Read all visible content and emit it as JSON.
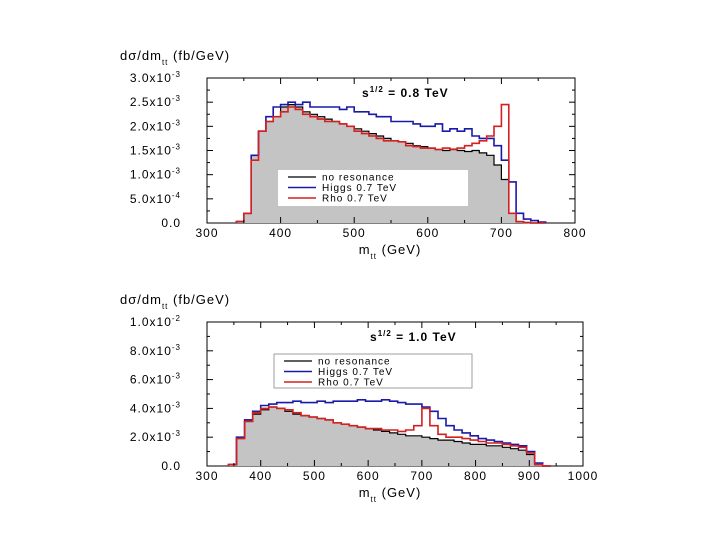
{
  "chart_data": [
    {
      "type": "line",
      "ylabel": "dσ/dm_tt (fb/GeV)",
      "xlabel": "m_tt (GeV)",
      "annotation": "s^{1/2} = 0.8 TeV",
      "xlim": [
        300,
        800
      ],
      "ylim": [
        0,
        0.003
      ],
      "x_ticks": [
        "300",
        "400",
        "500",
        "600",
        "700",
        "800"
      ],
      "y_ticks": [
        "0.0",
        "5.0x10^-4",
        "1.0x10^-3",
        "1.5x10^-3",
        "2.0x10^-3",
        "2.5x10^-3",
        "3.0x10^-3"
      ],
      "legend": [
        "no resonance",
        "Higgs 0.7 TeV",
        "Rho 0.7 TeV"
      ],
      "legend_position": "center",
      "x": [
        340,
        350,
        360,
        370,
        380,
        390,
        400,
        410,
        420,
        430,
        440,
        450,
        460,
        470,
        480,
        490,
        500,
        510,
        520,
        530,
        540,
        550,
        560,
        570,
        580,
        590,
        600,
        610,
        620,
        630,
        640,
        650,
        660,
        670,
        680,
        690,
        700,
        710,
        720,
        730,
        740,
        750
      ],
      "series": [
        {
          "name": "no resonance",
          "color": "#000000",
          "filled": true,
          "values": [
            3e-05,
            0.0002,
            0.0014,
            0.0019,
            0.0021,
            0.0022,
            0.0024,
            0.00245,
            0.0024,
            0.0023,
            0.00225,
            0.0022,
            0.00215,
            0.0021,
            0.00205,
            0.002,
            0.00195,
            0.0019,
            0.00185,
            0.0018,
            0.00175,
            0.0017,
            0.00168,
            0.00165,
            0.0016,
            0.00158,
            0.00155,
            0.00152,
            0.0015,
            0.00153,
            0.0015,
            0.00148,
            0.0015,
            0.00145,
            0.0014,
            0.0012,
            0.0009,
            0.0002,
            3e-05,
            1e-05,
            0,
            0
          ]
        },
        {
          "name": "Higgs 0.7 TeV",
          "color": "#1a1aa8",
          "values": [
            3e-05,
            0.0002,
            0.0014,
            0.0019,
            0.0022,
            0.0024,
            0.00245,
            0.0025,
            0.00245,
            0.0025,
            0.0024,
            0.0024,
            0.0024,
            0.0024,
            0.00235,
            0.0024,
            0.0023,
            0.0023,
            0.00225,
            0.0022,
            0.0022,
            0.0021,
            0.0021,
            0.0021,
            0.00205,
            0.002,
            0.002,
            0.00205,
            0.0019,
            0.00195,
            0.0019,
            0.00195,
            0.0018,
            0.00175,
            0.00175,
            0.0016,
            0.0013,
            0.00085,
            0.0002,
            8e-05,
            5e-05,
            2e-05
          ]
        },
        {
          "name": "Rho 0.7 TeV",
          "color": "#d42020",
          "values": [
            3e-05,
            0.0002,
            0.0013,
            0.0019,
            0.0021,
            0.0022,
            0.0023,
            0.0024,
            0.00235,
            0.00225,
            0.0022,
            0.00215,
            0.0021,
            0.0021,
            0.00205,
            0.002,
            0.0019,
            0.00185,
            0.0018,
            0.00175,
            0.0017,
            0.0017,
            0.00168,
            0.0016,
            0.00158,
            0.00155,
            0.00155,
            0.00152,
            0.00155,
            0.00152,
            0.00155,
            0.0016,
            0.00165,
            0.0017,
            0.0018,
            0.002,
            0.00245,
            0.0002,
            3e-05,
            1e-05,
            0,
            0
          ]
        }
      ]
    },
    {
      "type": "line",
      "ylabel": "dσ/dm_tt (fb/GeV)",
      "xlabel": "m_tt (GeV)",
      "annotation": "s^{1/2} = 1.0 TeV",
      "xlim": [
        300,
        1000
      ],
      "ylim": [
        0,
        0.01
      ],
      "x_ticks": [
        "300",
        "400",
        "500",
        "600",
        "700",
        "800",
        "900",
        "1000"
      ],
      "y_ticks": [
        "0.0",
        "2.0x10^-3",
        "4.0x10^-3",
        "6.0x10^-3",
        "8.0x10^-3",
        "1.0x10^-2"
      ],
      "legend": [
        "no resonance",
        "Higgs 0.7 TeV",
        "Rho 0.7 TeV"
      ],
      "legend_position": "top-left",
      "x": [
        340,
        355,
        370,
        385,
        400,
        415,
        430,
        445,
        460,
        475,
        490,
        505,
        520,
        535,
        550,
        565,
        580,
        595,
        610,
        625,
        640,
        655,
        670,
        685,
        700,
        715,
        730,
        745,
        760,
        775,
        790,
        805,
        820,
        835,
        850,
        865,
        880,
        895,
        910,
        925
      ],
      "series": [
        {
          "name": "no resonance",
          "color": "#000000",
          "filled": true,
          "values": [
            0.0001,
            0.002,
            0.0032,
            0.0036,
            0.0039,
            0.0041,
            0.004,
            0.0038,
            0.0036,
            0.0035,
            0.0034,
            0.0033,
            0.0032,
            0.003,
            0.0029,
            0.0028,
            0.0027,
            0.0026,
            0.0025,
            0.0024,
            0.0023,
            0.0022,
            0.0021,
            0.0021,
            0.002,
            0.0019,
            0.0018,
            0.0018,
            0.0017,
            0.0016,
            0.0015,
            0.0015,
            0.0014,
            0.0014,
            0.0013,
            0.0012,
            0.0011,
            0.0008,
            0.0001,
            0
          ]
        },
        {
          "name": "Higgs 0.7 TeV",
          "color": "#1a1aa8",
          "values": [
            0.0001,
            0.002,
            0.0032,
            0.0038,
            0.0042,
            0.0043,
            0.0044,
            0.0044,
            0.0045,
            0.0044,
            0.0044,
            0.0045,
            0.0044,
            0.0045,
            0.0045,
            0.0045,
            0.0046,
            0.0045,
            0.0045,
            0.0046,
            0.0045,
            0.0044,
            0.0043,
            0.0043,
            0.0041,
            0.0038,
            0.0033,
            0.0028,
            0.0025,
            0.0023,
            0.0021,
            0.0019,
            0.0018,
            0.0017,
            0.0016,
            0.0015,
            0.0014,
            0.001,
            0.0002,
            0
          ]
        },
        {
          "name": "Rho 0.7 TeV",
          "color": "#d42020",
          "values": [
            0.0001,
            0.0019,
            0.0031,
            0.0037,
            0.004,
            0.0041,
            0.004,
            0.0039,
            0.0037,
            0.0035,
            0.0034,
            0.0033,
            0.0032,
            0.003,
            0.0029,
            0.0028,
            0.0027,
            0.0026,
            0.0026,
            0.0025,
            0.0025,
            0.0024,
            0.0025,
            0.0028,
            0.004,
            0.0028,
            0.0022,
            0.002,
            0.002,
            0.0019,
            0.0018,
            0.0017,
            0.0016,
            0.0016,
            0.0015,
            0.0014,
            0.0013,
            0.0009,
            0.0001,
            0
          ]
        }
      ]
    }
  ]
}
